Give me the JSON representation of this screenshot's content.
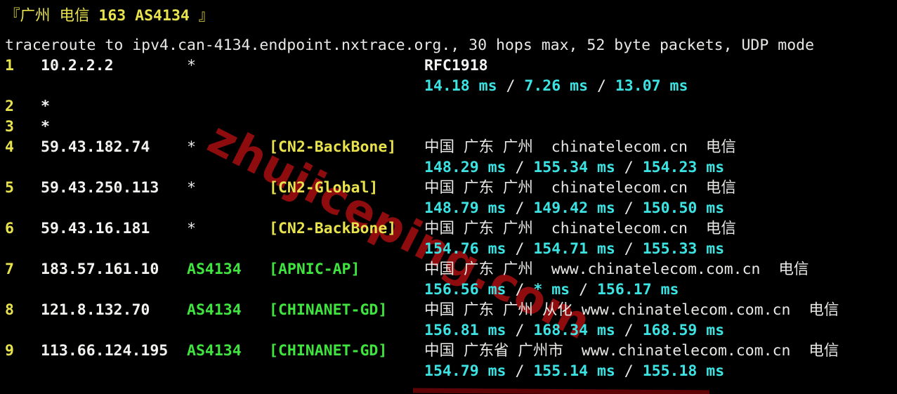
{
  "terminal": {
    "title": {
      "prefix": "『广州 电信 ",
      "highlight": "163 AS4134",
      "suffix": " 』"
    },
    "trace_header": "traceroute to ipv4.can-4134.endpoint.nxtrace.org., 30 hops max, 52 byte packets, UDP mode",
    "rtt_separator": " / ",
    "hops": [
      {
        "num": "1",
        "ip": "10.2.2.2",
        "as": "*",
        "tag": "",
        "geo": "RFC1918",
        "rtt": [
          "14.18 ms",
          "7.26 ms",
          "13.07 ms"
        ]
      },
      {
        "num": "2",
        "ip": "*"
      },
      {
        "num": "3",
        "ip": "*"
      },
      {
        "num": "4",
        "ip": "59.43.182.74",
        "as": "*",
        "tag": "[CN2-BackBone]",
        "geo": "中国 广东 广州  chinatelecom.cn  电信",
        "rtt": [
          "148.29 ms",
          "155.34 ms",
          "154.23 ms"
        ]
      },
      {
        "num": "5",
        "ip": "59.43.250.113",
        "as": "*",
        "tag": "[CN2-Global]",
        "geo": "中国 广东 广州  chinatelecom.cn  电信",
        "rtt": [
          "148.79 ms",
          "149.42 ms",
          "150.50 ms"
        ]
      },
      {
        "num": "6",
        "ip": "59.43.16.181",
        "as": "*",
        "tag": "[CN2-BackBone]",
        "geo": "中国 广东 广州  chinatelecom.cn  电信",
        "rtt": [
          "154.76 ms",
          "154.71 ms",
          "155.33 ms"
        ]
      },
      {
        "num": "7",
        "ip": "183.57.161.10",
        "as": "AS4134",
        "tag": "[APNIC-AP]",
        "geo": "中国 广东 广州  www.chinatelecom.com.cn  电信",
        "rtt": [
          "156.56 ms",
          "* ms",
          "156.17 ms"
        ]
      },
      {
        "num": "8",
        "ip": "121.8.132.70",
        "as": "AS4134",
        "tag": "[CHINANET-GD]",
        "geo": "中国 广东 广州 从化 www.chinatelecom.com.cn  电信",
        "rtt": [
          "156.81 ms",
          "168.34 ms",
          "168.59 ms"
        ]
      },
      {
        "num": "9",
        "ip": "113.66.124.195",
        "as": "AS4134",
        "tag": "[CHINANET-GD]",
        "geo": "中国 广东省 广州市  www.chinatelecom.com.cn  电信",
        "rtt": [
          "154.79 ms",
          "155.14 ms",
          "155.18 ms"
        ]
      }
    ]
  },
  "watermark": {
    "text": "zhujiceping.com"
  },
  "colors": {
    "background": "#000000",
    "yellow": "#E8E24C",
    "green": "#3FE43F",
    "cyan": "#3CE3E3",
    "white": "#E8E8E6",
    "watermark_red": "#8E0B0E"
  }
}
